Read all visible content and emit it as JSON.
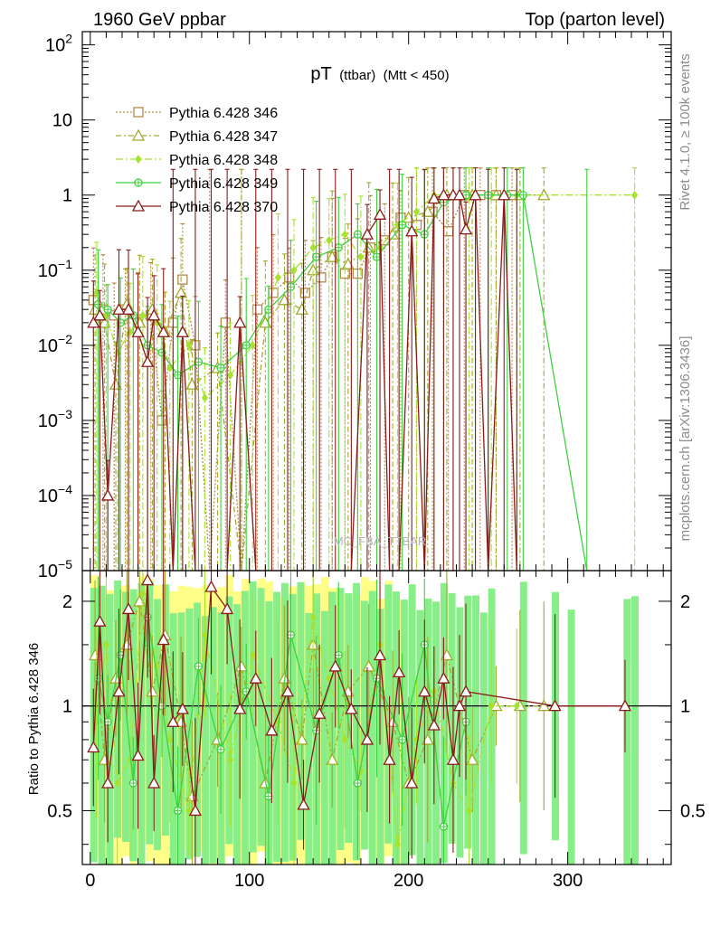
{
  "header": {
    "left": "1960 GeV ppbar",
    "right": "Top (parton level)"
  },
  "plot_title": {
    "main": "pT",
    "sub1": "(ttbar)",
    "sub2": "(Mtt < 450)"
  },
  "side_text": {
    "rivet": "Rivet 4.1.0, ≥ 100k events",
    "mcplots": "mcplots.cern.ch [arXiv:1306.3436]"
  },
  "watermark": "MC_FBA_TTBAR",
  "colors": {
    "s346": "#b5874a",
    "s347": "#a3a82a",
    "s348": "#a6e22e",
    "s349": "#3fd13f",
    "s370": "#8b1a1a",
    "band_yellow": "#ffff88",
    "band_green": "#88ee88"
  },
  "chart_data": [
    {
      "type": "line",
      "title": "pT (ttbar) (Mtt < 450)",
      "xlabel": "",
      "ylabel": "",
      "yscale": "log",
      "xlim": [
        -5,
        365
      ],
      "ylim": [
        1e-05,
        150
      ],
      "y_ticks": [
        {
          "value": 1e-05,
          "base": "10",
          "exp": "−5"
        },
        {
          "value": 0.0001,
          "base": "10",
          "exp": "−4"
        },
        {
          "value": 0.001,
          "base": "10",
          "exp": "−3"
        },
        {
          "value": 0.01,
          "base": "10",
          "exp": "−2"
        },
        {
          "value": 0.1,
          "base": "10",
          "exp": "−1"
        },
        {
          "value": 1,
          "base": "1",
          "exp": ""
        },
        {
          "value": 10,
          "base": "10",
          "exp": ""
        },
        {
          "value": 100,
          "base": "10",
          "exp": "2"
        }
      ],
      "legend_position": "top-left",
      "series": [
        {
          "name": "Pythia 6.428 346",
          "color_key": "s346",
          "marker": "square-open",
          "dash": "2,2",
          "x": [
            2,
            8,
            15,
            22,
            30,
            38,
            45,
            52,
            58,
            66,
            75,
            85,
            95,
            105,
            115,
            125,
            135,
            145,
            152,
            160,
            168,
            176,
            185,
            195,
            205,
            215,
            225,
            235,
            245,
            255,
            265
          ],
          "y": [
            0.04,
            0.03,
            0.025,
            0.03,
            0.02,
            0.025,
            0.001,
            0.02,
            0.075,
            0.01,
            1e-05,
            0.02,
            1e-05,
            0.03,
            0.05,
            0.08,
            0.05,
            0.08,
            0.15,
            0.09,
            0.09,
            0.2,
            0.25,
            0.5,
            0.4,
            0.6,
            0.33,
            1,
            1,
            1,
            1
          ]
        },
        {
          "name": "Pythia 6.428 347",
          "color_key": "s347",
          "marker": "triangle-open",
          "dash": "6,3,2,3",
          "x": [
            3,
            9,
            16,
            23,
            31,
            39,
            47,
            57,
            64,
            80,
            95,
            110,
            122,
            133,
            140,
            152,
            162,
            175,
            190,
            200,
            212,
            224,
            240,
            255,
            270,
            285
          ],
          "y": [
            0.03,
            0.02,
            0.003,
            0.035,
            0.02,
            0.03,
            0.015,
            0.05,
            0.003,
            0.005,
            1e-05,
            0.02,
            0.04,
            0.03,
            0.1,
            0.15,
            0.12,
            0.2,
            0.3,
            0.5,
            0.6,
            1,
            1,
            1,
            1,
            1
          ]
        },
        {
          "name": "Pythia 6.428 348",
          "color_key": "s348",
          "marker": "diamond",
          "dash": "8,3,2,3",
          "x": [
            4,
            10,
            17,
            25,
            33,
            42,
            50,
            62,
            72,
            88,
            102,
            118,
            128,
            140,
            150,
            160,
            170,
            182,
            193,
            205,
            216,
            228,
            238,
            252,
            268,
            342
          ],
          "y": [
            0.05,
            0.025,
            0.008,
            0.015,
            0.025,
            0.02,
            0.005,
            0.01,
            0.002,
            0.004,
            0.01,
            0.08,
            0.1,
            0.2,
            0.25,
            0.3,
            0.15,
            0.2,
            0.4,
            0.6,
            1,
            1,
            1,
            1,
            1,
            1
          ]
        },
        {
          "name": "Pythia 6.428 349",
          "color_key": "s349",
          "marker": "circle-cross",
          "dash": "",
          "x": [
            5,
            11,
            19,
            27,
            36,
            45,
            55,
            68,
            82,
            98,
            112,
            126,
            142,
            156,
            168,
            180,
            196,
            210,
            222,
            236,
            250,
            262,
            272,
            312
          ],
          "y": [
            0.035,
            0.03,
            0.02,
            0.025,
            0.01,
            0.008,
            0.004,
            0.006,
            0.005,
            0.01,
            0.03,
            0.06,
            0.15,
            0.2,
            0.3,
            0.15,
            0.4,
            0.3,
            0.8,
            1,
            1,
            1,
            1,
            1e-05
          ]
        },
        {
          "name": "Pythia 6.428 370",
          "color_key": "s370",
          "marker": "triangle-open",
          "dash": "",
          "x": [
            2,
            6,
            11,
            18,
            24,
            30,
            36,
            40,
            46,
            52,
            58,
            66,
            76,
            86,
            94,
            104,
            114,
            124,
            134,
            144,
            154,
            164,
            174,
            182,
            188,
            194,
            202,
            210,
            216,
            222,
            228,
            232,
            236,
            242,
            250,
            260,
            268
          ],
          "y": [
            0.02,
            0.025,
            0.0001,
            0.03,
            0.03,
            0.015,
            0.006,
            0.025,
            0.015,
            1e-05,
            0.015,
            1e-05,
            1e-05,
            1e-05,
            0.02,
            1e-05,
            1e-05,
            1e-05,
            1e-05,
            1e-05,
            1e-05,
            1e-05,
            0.3,
            0.55,
            1e-05,
            1e-05,
            0.33,
            1e-05,
            0.9,
            1,
            1,
            1,
            0.35,
            1,
            1e-05,
            1,
            1e-05
          ]
        }
      ]
    },
    {
      "type": "line",
      "title": "",
      "xlabel": "",
      "ylabel": "Ratio to Pythia 6.428 346",
      "yscale": "log",
      "xlim": [
        -5,
        365
      ],
      "ylim": [
        0.35,
        2.45
      ],
      "x_ticks": [
        0,
        100,
        200,
        300
      ],
      "y_ticks_left": [
        "0.5",
        "1",
        "2"
      ],
      "y_ticks_right": [
        "0.5",
        "1",
        "2"
      ],
      "y_tick_values": [
        0.5,
        1,
        2
      ],
      "series": [
        {
          "name": "Pythia 6.428 347",
          "color_key": "s347",
          "marker": "triangle-open",
          "dash": "6,3,2,3",
          "x": [
            3,
            9,
            16,
            23,
            31,
            39,
            47,
            57,
            64,
            80,
            95,
            110,
            122,
            133,
            140,
            152,
            162,
            175,
            190,
            200,
            212,
            224,
            240,
            255,
            270,
            285
          ],
          "y": [
            1.4,
            0.7,
            1.2,
            1.5,
            2.0,
            1.1,
            1.6,
            0.9,
            0.55,
            0.8,
            1.3,
            0.6,
            1.2,
            0.8,
            1.5,
            0.7,
            1.1,
            1.3,
            0.9,
            0.6,
            0.8,
            1.4,
            0.7,
            1.0,
            1.0,
            1.0
          ]
        },
        {
          "name": "Pythia 6.428 348",
          "color_key": "s348",
          "marker": "diamond",
          "dash": "8,3,2,3",
          "x": [
            4,
            10,
            17,
            25,
            33,
            42,
            50,
            62,
            72,
            88,
            102,
            118,
            128,
            140,
            150,
            160,
            170,
            182,
            193,
            205,
            216,
            228,
            238,
            252,
            268
          ],
          "y": [
            0.9,
            1.5,
            0.6,
            0.7,
            2.1,
            1.3,
            0.8,
            0.5,
            1.6,
            0.7,
            1.4,
            0.9,
            0.6,
            1.8,
            1.2,
            0.8,
            0.65,
            1.5,
            0.4,
            0.8,
            1.1,
            0.6,
            0.5,
            1.0,
            1.0
          ]
        },
        {
          "name": "Pythia 6.428 349",
          "color_key": "s349",
          "marker": "circle-cross",
          "dash": "",
          "x": [
            5,
            11,
            19,
            27,
            36,
            45,
            55,
            68,
            82,
            98,
            112,
            126,
            142,
            156,
            168,
            180,
            196,
            210,
            222,
            236
          ],
          "y": [
            1.2,
            0.9,
            1.4,
            0.6,
            1.8,
            1.0,
            0.5,
            1.3,
            0.75,
            1.1,
            0.55,
            1.6,
            0.85,
            1.4,
            0.6,
            1.2,
            0.8,
            1.5,
            0.45,
            0.9
          ]
        },
        {
          "name": "Pythia 6.428 370",
          "color_key": "s370",
          "marker": "triangle-open",
          "dash": "",
          "x": [
            2,
            6,
            11,
            18,
            24,
            30,
            36,
            40,
            46,
            52,
            58,
            66,
            76,
            86,
            94,
            104,
            114,
            124,
            134,
            144,
            154,
            164,
            174,
            182,
            188,
            194,
            202,
            210,
            216,
            222,
            228,
            232,
            236,
            292,
            336
          ],
          "y": [
            0.76,
            1.75,
            0.6,
            1.1,
            1.9,
            0.72,
            2.3,
            0.6,
            1.55,
            0.9,
            0.98,
            0.5,
            2.2,
            1.9,
            0.98,
            1.2,
            0.85,
            1.1,
            0.52,
            0.95,
            1.3,
            0.98,
            0.8,
            1.4,
            0.7,
            1.25,
            0.6,
            1.1,
            0.88,
            1.2,
            0.7,
            1.0,
            1.1,
            1.0,
            1.0
          ]
        }
      ]
    }
  ]
}
